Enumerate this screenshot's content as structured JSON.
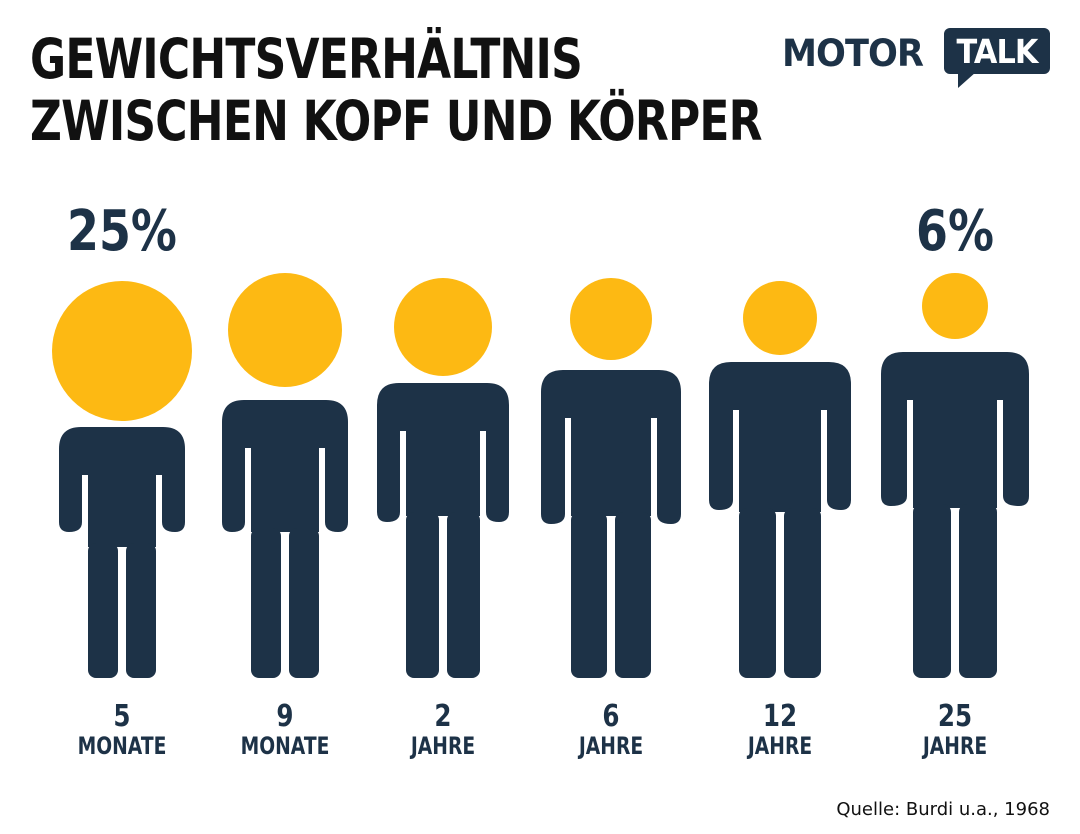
{
  "title": {
    "line1": "GEWICHTSVERHÄLTNIS",
    "line2": "ZWISCHEN KOPF UND KÖRPER"
  },
  "logo": {
    "part1": "MOTOR",
    "part2": "TALK"
  },
  "source": "Quelle: Burdi u.a., 1968",
  "colors": {
    "head": "#fdb913",
    "body": "#1d3247",
    "text": "#111111"
  },
  "chart_data": {
    "type": "pictogram",
    "title": "GEWICHTSVERHÄLTNIS ZWISCHEN KOPF UND KÖRPER",
    "categories": [
      {
        "num": "5",
        "unit": "MONATE"
      },
      {
        "num": "9",
        "unit": "MONATE"
      },
      {
        "num": "2",
        "unit": "JAHRE"
      },
      {
        "num": "6",
        "unit": "JAHRE"
      },
      {
        "num": "12",
        "unit": "JAHRE"
      },
      {
        "num": "25",
        "unit": "JAHRE"
      }
    ],
    "head_share_percent": [
      25,
      null,
      null,
      null,
      null,
      6
    ],
    "value_labels": [
      "25%",
      "",
      "",
      "",
      "",
      "6%"
    ]
  }
}
